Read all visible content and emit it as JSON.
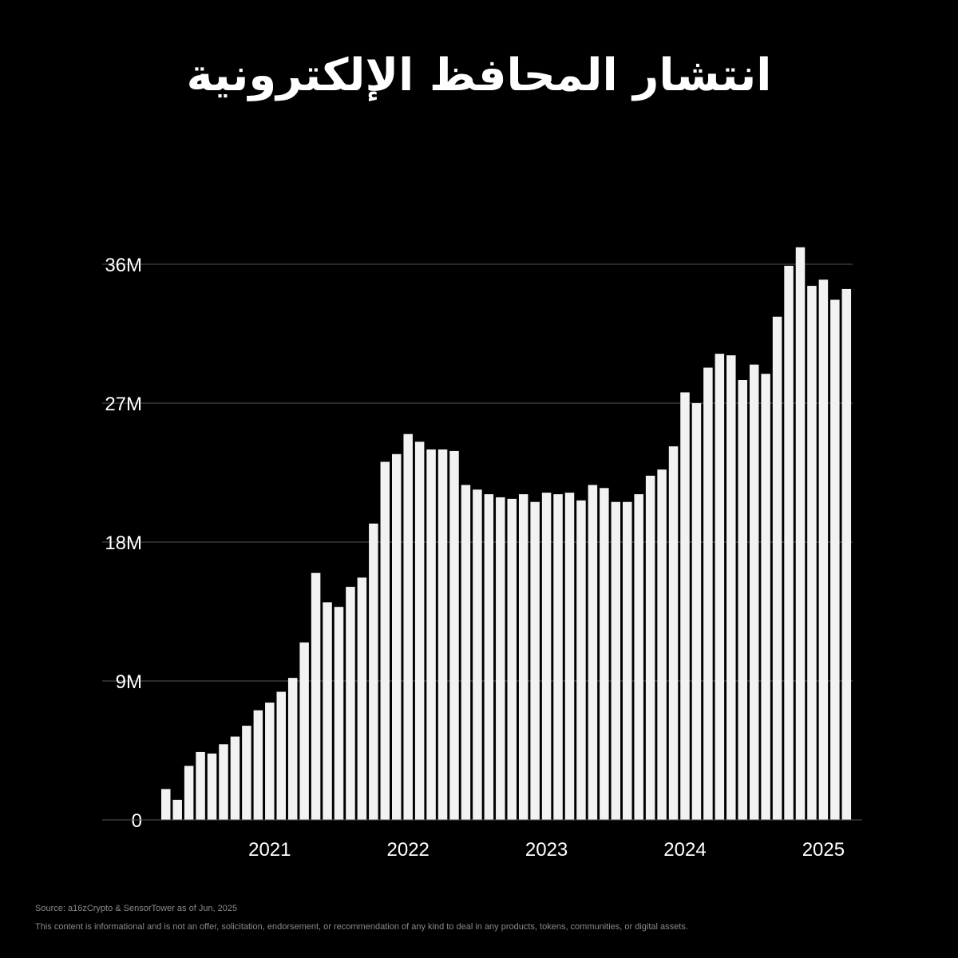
{
  "title": "انتشار المحافظ الإلكترونية",
  "footer": {
    "source": "Source: a16zCrypto & SensorTower as of Jun, 2025",
    "disclaimer": "This content is informational and is not an offer, solicitation, endorsement, or recommendation of any kind to deal in any products, tokens, communities, or digital assets."
  },
  "colors": {
    "background": "#000000",
    "bar": "#f2f2f2",
    "grid": "#555555",
    "text": "#ffffff"
  },
  "chart_data": {
    "type": "bar",
    "title": "انتشار المحافظ الإلكترونية",
    "xlabel": "",
    "ylabel": "",
    "ylim": [
      0,
      36000000
    ],
    "y_ticks": [
      {
        "value": 0,
        "label": "0"
      },
      {
        "value": 9000000,
        "label": "9M"
      },
      {
        "value": 18000000,
        "label": "18M"
      },
      {
        "value": 27000000,
        "label": "27M"
      },
      {
        "value": 36000000,
        "label": "36M"
      }
    ],
    "x_ticks": [
      {
        "position": 9,
        "label": "2021"
      },
      {
        "position": 21,
        "label": "2022"
      },
      {
        "position": 33,
        "label": "2023"
      },
      {
        "position": 45,
        "label": "2024"
      },
      {
        "position": 57,
        "label": "2025"
      }
    ],
    "grid": true,
    "legend": "none",
    "values": [
      2000000,
      1300000,
      3500000,
      4400000,
      4300000,
      4900000,
      5400000,
      6100000,
      7100000,
      7600000,
      8300000,
      9200000,
      11500000,
      16000000,
      14100000,
      13800000,
      15100000,
      15700000,
      19200000,
      23200000,
      23700000,
      25000000,
      24500000,
      24000000,
      24000000,
      23900000,
      21700000,
      21400000,
      21100000,
      20900000,
      20800000,
      21100000,
      20600000,
      21200000,
      21100000,
      21200000,
      20700000,
      21700000,
      21500000,
      20600000,
      20600000,
      21100000,
      22300000,
      22700000,
      24200000,
      27700000,
      27000000,
      29300000,
      30200000,
      30100000,
      28500000,
      29500000,
      28900000,
      32600000,
      35900000,
      37100000,
      34600000,
      35000000,
      33700000,
      34400000
    ]
  }
}
